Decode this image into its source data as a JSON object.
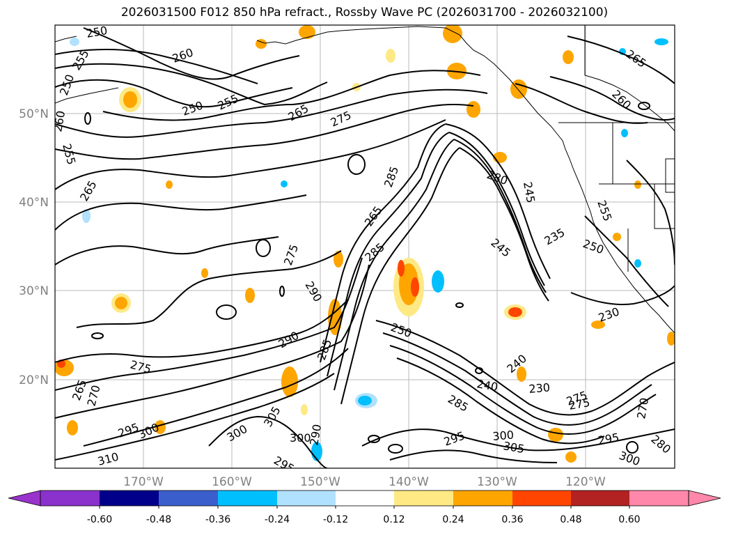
{
  "title": "2026031500 F012 850 hPa refract., Rossby Wave PC (2026031700 - 2026032100)",
  "lat_labels": [
    "50°N",
    "40°N",
    "30°N",
    "20°N"
  ],
  "lon_labels": [
    "170°W",
    "160°W",
    "150°W",
    "140°W",
    "130°W",
    "120°W"
  ],
  "colorbar": {
    "colors": [
      "#9933cc",
      "#8b32cc",
      "#00008b",
      "#3a5fcd",
      "#00bfff",
      "#b0e2ff",
      "#ffffff",
      "#ffe985",
      "#ffa500",
      "#ff4500",
      "#b22222",
      "#ff88aa",
      "#ff88aa"
    ],
    "tick_labels": [
      "-0.60",
      "-0.48",
      "-0.36",
      "-0.24",
      "-0.12",
      "0.12",
      "0.24",
      "0.36",
      "0.48",
      "0.60"
    ]
  },
  "contour_labels": [
    {
      "text": "250"
    },
    {
      "text": "255"
    },
    {
      "text": "250"
    },
    {
      "text": "260"
    },
    {
      "text": "255"
    },
    {
      "text": "250"
    },
    {
      "text": "255"
    },
    {
      "text": "265"
    },
    {
      "text": "275"
    },
    {
      "text": "265"
    },
    {
      "text": "260"
    },
    {
      "text": "285"
    },
    {
      "text": "280"
    },
    {
      "text": "245"
    },
    {
      "text": "255"
    },
    {
      "text": "235"
    },
    {
      "text": "250"
    },
    {
      "text": "245"
    },
    {
      "text": "285"
    },
    {
      "text": "265"
    },
    {
      "text": "275"
    },
    {
      "text": "290"
    },
    {
      "text": "290"
    },
    {
      "text": "285"
    },
    {
      "text": "250"
    },
    {
      "text": "230"
    },
    {
      "text": "240"
    },
    {
      "text": "240"
    },
    {
      "text": "230"
    },
    {
      "text": "275"
    },
    {
      "text": "265"
    },
    {
      "text": "270"
    },
    {
      "text": "275"
    },
    {
      "text": "285"
    },
    {
      "text": "270"
    },
    {
      "text": "295"
    },
    {
      "text": "300"
    },
    {
      "text": "305"
    },
    {
      "text": "300"
    },
    {
      "text": "300"
    },
    {
      "text": "290"
    },
    {
      "text": "295"
    },
    {
      "text": "300"
    },
    {
      "text": "305"
    },
    {
      "text": "295"
    },
    {
      "text": "280"
    },
    {
      "text": "295"
    },
    {
      "text": "300"
    },
    {
      "text": "310"
    },
    {
      "text": "275"
    }
  ]
}
